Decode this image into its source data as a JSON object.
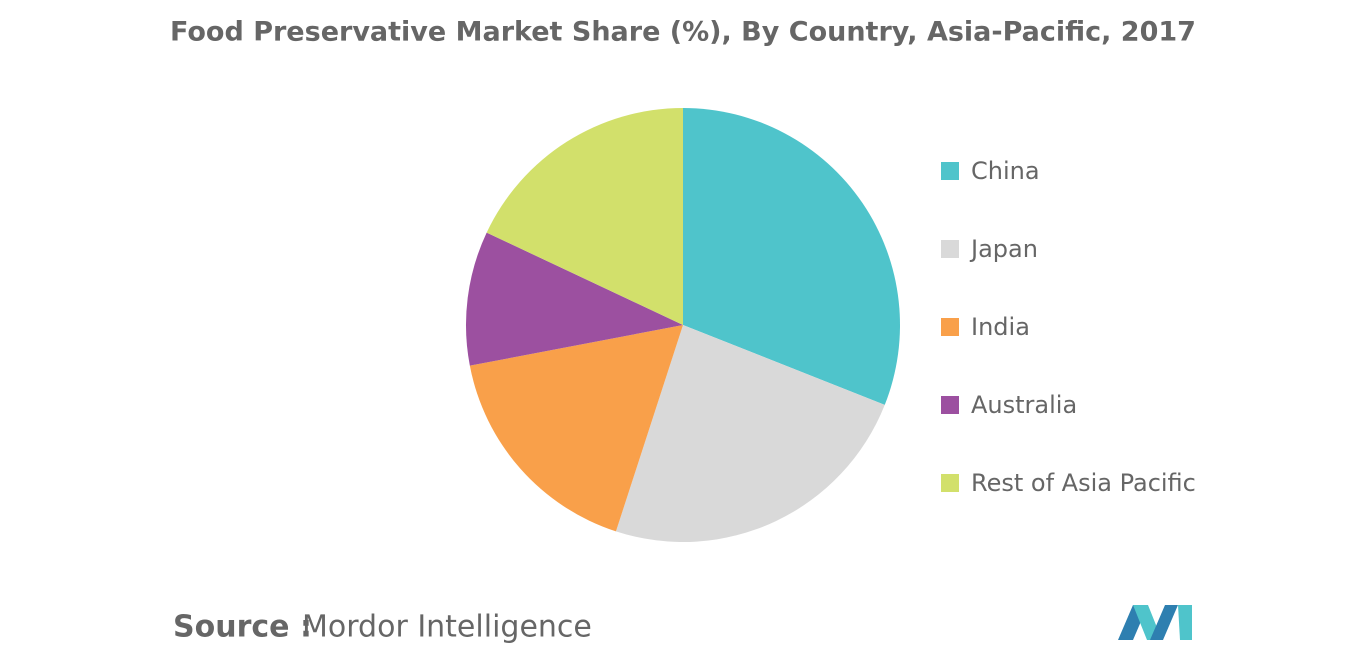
{
  "chart_data": {
    "type": "pie",
    "title": "Food Preservative Market Share (%), By Country, Asia-Pacific, 2017",
    "categories": [
      "China",
      "Japan",
      "India",
      "Australia",
      "Rest of Asia Pacific"
    ],
    "values": [
      31,
      24,
      17,
      10,
      18
    ],
    "colors": [
      "#4fc4cb",
      "#d9d9d9",
      "#f9a04a",
      "#9c50a0",
      "#d2e06b"
    ],
    "legend": "right",
    "source_label": "Source :",
    "source": "Mordor Intelligence"
  }
}
